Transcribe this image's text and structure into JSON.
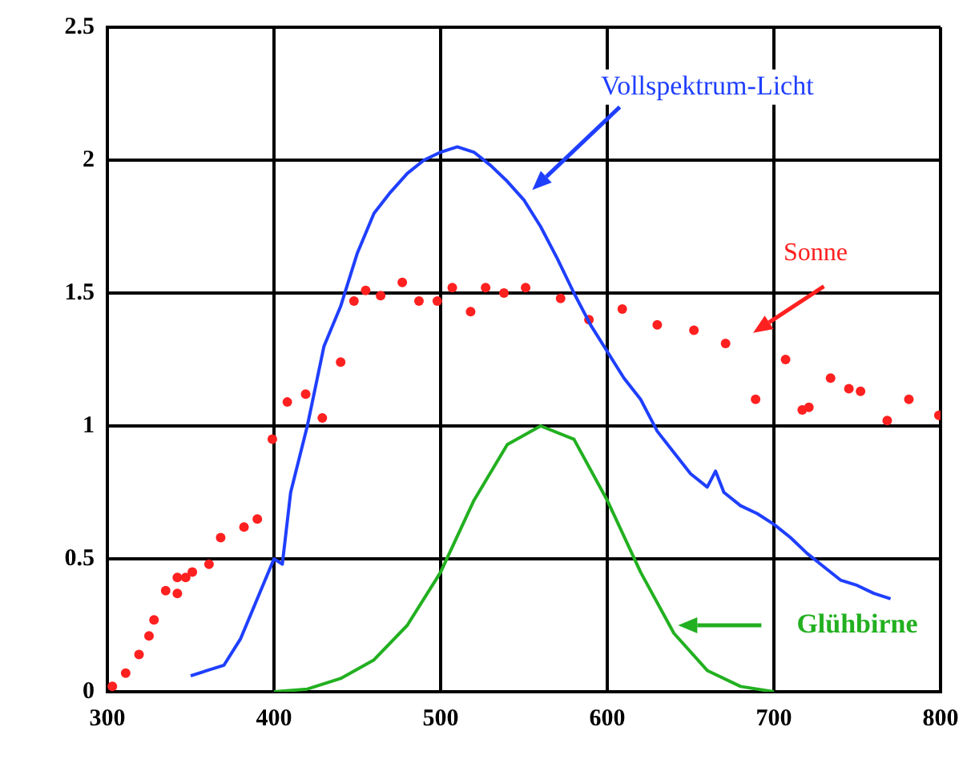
{
  "chart_data": {
    "type": "line",
    "xlim": [
      300,
      800
    ],
    "xticks": [
      300,
      400,
      500,
      600,
      700,
      800
    ],
    "ylim": [
      0,
      2.5
    ],
    "yticks": [
      0,
      0.5,
      1,
      1.5,
      2,
      2.5
    ],
    "grid": true,
    "series": [
      {
        "name": "Vollspektrum-Licht",
        "color": "#1f3fff",
        "marker": "none",
        "x": [
          350,
          360,
          370,
          380,
          390,
          400,
          405,
          410,
          420,
          430,
          440,
          450,
          460,
          470,
          480,
          490,
          500,
          510,
          520,
          530,
          540,
          550,
          560,
          570,
          580,
          590,
          600,
          610,
          620,
          630,
          640,
          650,
          660,
          665,
          670,
          680,
          690,
          700,
          710,
          720,
          730,
          740,
          750,
          760,
          770
        ],
        "values": [
          0.06,
          0.08,
          0.1,
          0.2,
          0.35,
          0.5,
          0.48,
          0.75,
          1.0,
          1.3,
          1.45,
          1.65,
          1.8,
          1.88,
          1.95,
          2.0,
          2.03,
          2.05,
          2.03,
          1.98,
          1.92,
          1.85,
          1.75,
          1.63,
          1.5,
          1.38,
          1.28,
          1.18,
          1.1,
          0.98,
          0.9,
          0.82,
          0.77,
          0.83,
          0.75,
          0.7,
          0.67,
          0.63,
          0.58,
          0.52,
          0.47,
          0.42,
          0.4,
          0.37,
          0.35
        ]
      },
      {
        "name": "Sonne",
        "type": "scatter",
        "color": "#ff2020",
        "marker": "circle",
        "x": [
          303,
          311,
          319,
          325,
          328,
          335,
          342,
          342,
          347,
          351,
          361,
          368,
          382,
          390,
          399,
          408,
          419,
          429,
          440,
          448,
          455,
          464,
          477,
          487,
          498,
          507,
          518,
          527,
          538,
          551,
          572,
          589,
          609,
          630,
          652,
          671,
          689,
          707,
          717,
          721,
          734,
          745,
          752,
          768,
          781,
          799
        ],
        "values": [
          0.02,
          0.07,
          0.14,
          0.21,
          0.27,
          0.38,
          0.37,
          0.43,
          0.43,
          0.45,
          0.48,
          0.58,
          0.62,
          0.65,
          0.95,
          1.09,
          1.12,
          1.03,
          1.24,
          1.47,
          1.51,
          1.49,
          1.54,
          1.47,
          1.47,
          1.52,
          1.43,
          1.52,
          1.5,
          1.52,
          1.48,
          1.4,
          1.44,
          1.38,
          1.36,
          1.31,
          1.1,
          1.25,
          1.06,
          1.07,
          1.18,
          1.14,
          1.13,
          1.02,
          1.1,
          1.04
        ]
      },
      {
        "name": "Glühbirne",
        "color": "#22b020",
        "marker": "none",
        "x": [
          400,
          420,
          440,
          460,
          480,
          500,
          520,
          540,
          560,
          580,
          600,
          620,
          640,
          660,
          680,
          700
        ],
        "values": [
          0,
          0.01,
          0.05,
          0.12,
          0.25,
          0.45,
          0.72,
          0.93,
          1.0,
          0.95,
          0.72,
          0.45,
          0.22,
          0.08,
          0.02,
          0
        ]
      }
    ]
  }
}
